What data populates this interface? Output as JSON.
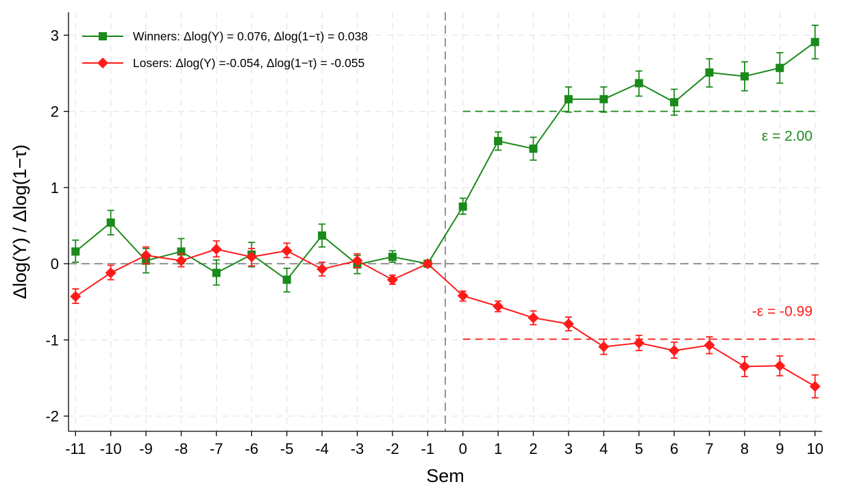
{
  "chart_data": {
    "type": "line",
    "xlabel": "Sem",
    "ylabel": "Δlog(Y) / Δlog(1−τ)",
    "x": [
      -11,
      -10,
      -9,
      -8,
      -7,
      -6,
      -5,
      -4,
      -3,
      -2,
      -1,
      0,
      1,
      2,
      3,
      4,
      5,
      6,
      7,
      8,
      9,
      10
    ],
    "x_tick_labels": [
      "-11",
      "-10",
      "-9",
      "-8",
      "-7",
      "-6",
      "-5",
      "-4",
      "-3",
      "-2",
      "-1",
      "0",
      "1",
      "2",
      "3",
      "4",
      "5",
      "6",
      "7",
      "8",
      "9",
      "10"
    ],
    "y_ticks": [
      3,
      2,
      1,
      0,
      -1,
      -2
    ],
    "y_tick_labels": [
      "3",
      "2",
      "1",
      "0",
      "-1",
      "-2"
    ],
    "xlim": [
      -11.2,
      10.2
    ],
    "ylim": [
      -2.2,
      3.3
    ],
    "grid": true,
    "legend_position": "top-left",
    "event_line_x": -0.5,
    "zero_line_y": 0,
    "series": [
      {
        "name": "Winners: Δlog(Y) = 0.076, Δlog(1−τ) = 0.038",
        "color": "#1a8a1a",
        "marker": "square",
        "values": [
          0.16,
          0.54,
          0.04,
          0.16,
          -0.12,
          0.12,
          -0.21,
          0.37,
          -0.01,
          0.09,
          0.0,
          0.75,
          1.61,
          1.51,
          2.16,
          2.16,
          2.37,
          2.12,
          2.51,
          2.46,
          2.57,
          2.91
        ],
        "ci_low": [
          0.02,
          0.38,
          -0.12,
          0.0,
          -0.28,
          -0.04,
          -0.37,
          0.22,
          -0.13,
          0.02,
          0.0,
          0.65,
          1.49,
          1.36,
          1.99,
          1.99,
          2.2,
          1.95,
          2.32,
          2.27,
          2.37,
          2.69
        ],
        "ci_high": [
          0.31,
          0.7,
          0.2,
          0.33,
          0.05,
          0.28,
          -0.06,
          0.52,
          0.11,
          0.17,
          0.0,
          0.86,
          1.73,
          1.66,
          2.32,
          2.32,
          2.53,
          2.29,
          2.69,
          2.65,
          2.77,
          3.13
        ]
      },
      {
        "name": "Losers: Δlog(Y) =-0.054, Δlog(1−τ) = -0.055",
        "color": "#ff1a1a",
        "marker": "diamond",
        "values": [
          -0.43,
          -0.12,
          0.11,
          0.04,
          0.19,
          0.09,
          0.17,
          -0.07,
          0.04,
          -0.21,
          0.0,
          -0.42,
          -0.56,
          -0.71,
          -0.79,
          -1.09,
          -1.04,
          -1.14,
          -1.07,
          -1.35,
          -1.34,
          -1.61
        ],
        "ci_low": [
          -0.52,
          -0.21,
          0.0,
          -0.04,
          0.09,
          -0.03,
          0.08,
          -0.16,
          -0.05,
          -0.27,
          0.0,
          -0.49,
          -0.63,
          -0.8,
          -0.88,
          -1.19,
          -1.14,
          -1.24,
          -1.18,
          -1.48,
          -1.47,
          -1.76
        ],
        "ci_high": [
          -0.33,
          -0.02,
          0.22,
          0.13,
          0.3,
          0.2,
          0.27,
          0.02,
          0.13,
          -0.15,
          0.0,
          -0.36,
          -0.49,
          -0.62,
          -0.7,
          -0.99,
          -0.94,
          -1.03,
          -0.96,
          -1.22,
          -1.21,
          -1.46
        ]
      }
    ],
    "annotations": [
      {
        "text": "ε =   2.00",
        "color": "#1a8a1a",
        "level": 2.0,
        "x_start": 0,
        "x_end": 10
      },
      {
        "text": "-ε =  -0.99",
        "color": "#ff1a1a",
        "level": -0.99,
        "x_start": 0,
        "x_end": 10
      }
    ]
  }
}
